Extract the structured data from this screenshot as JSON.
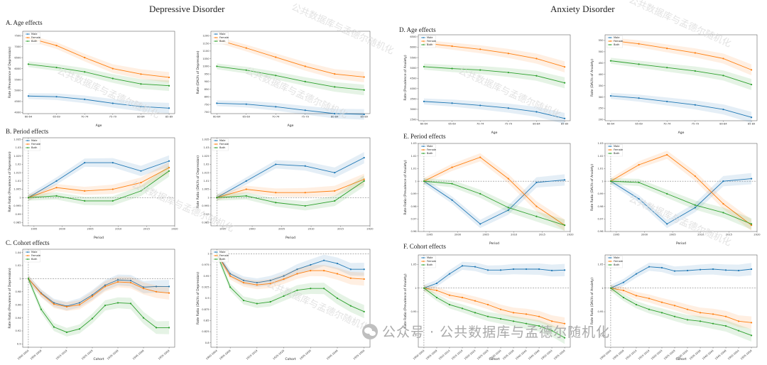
{
  "titles": {
    "left": "Depressive Disorder",
    "right": "Anxiety Disorder"
  },
  "sections": {
    "A": "A. Age effects",
    "B": "B. Period effects",
    "C": "C. Cohort effects",
    "D": "D. Age effects",
    "E": "E. Period effects",
    "F": "F. Cohort effects"
  },
  "watermark": "公共数据库与孟德尔随机化",
  "footer": {
    "text": "公众号 · 公共数据库与孟德尔随机化",
    "icon": "wechat-icon"
  },
  "colors": {
    "Male": "#1f77b4",
    "Female": "#ff7f0e",
    "Both": "#2ca02c"
  },
  "chart_data": [
    {
      "id": "dep-age-prev",
      "type": "line",
      "xlabel": "Age",
      "ylabel": "Rate (Prevalence of Depression)",
      "categories": [
        "60-64",
        "65-69",
        "70-74",
        "75-79",
        "80-84",
        "85-89"
      ],
      "yticks": [
        4000,
        4500,
        5000,
        5500,
        6000,
        6500,
        7000,
        7500
      ],
      "ylim": [
        3950,
        7700
      ],
      "legend": [
        "Male",
        "Female",
        "Both"
      ],
      "legend_position": "top-left",
      "series": [
        {
          "name": "Male",
          "values": [
            4750,
            4720,
            4600,
            4420,
            4270,
            4200
          ]
        },
        {
          "name": "Female",
          "values": [
            7400,
            7050,
            6500,
            6000,
            5750,
            5600
          ]
        },
        {
          "name": "Both",
          "values": [
            6200,
            6050,
            5850,
            5550,
            5300,
            5220
          ]
        }
      ]
    },
    {
      "id": "dep-age-daly",
      "type": "line",
      "xlabel": "Age",
      "ylabel": "Rate (DALYs of Depression)",
      "categories": [
        "60-64",
        "65-69",
        "70-74",
        "75-79",
        "80-84",
        "85-89"
      ],
      "yticks": [
        700,
        750,
        800,
        850,
        900,
        950,
        1000,
        1050,
        1100,
        1150,
        1200
      ],
      "ylim": [
        690,
        1230
      ],
      "legend": [
        "Male",
        "Female",
        "Both"
      ],
      "legend_position": "top-left",
      "series": [
        {
          "name": "Male",
          "values": [
            758,
            752,
            735,
            712,
            690,
            685
          ]
        },
        {
          "name": "Female",
          "values": [
            1175,
            1120,
            1060,
            1000,
            950,
            930
          ]
        },
        {
          "name": "Both",
          "values": [
            1000,
            975,
            940,
            900,
            865,
            845
          ]
        }
      ]
    },
    {
      "id": "dep-period-prev",
      "type": "line",
      "xlabel": "Period",
      "ylabel": "Rate Ratio (Prevalence of Depression)",
      "x": [
        1994,
        1999,
        2004,
        2009,
        2014,
        2019
      ],
      "xticks": [
        1995,
        2000,
        2005,
        2010,
        2015,
        2020
      ],
      "xlim": [
        1993,
        2020
      ],
      "yticks": [
        0.985,
        0.99,
        0.995,
        1.0,
        1.005,
        1.01,
        1.015,
        1.02,
        1.025,
        1.03,
        1.035
      ],
      "ylim": [
        0.983,
        1.036
      ],
      "ref_line": {
        "y": 1.0,
        "x": 1994
      },
      "legend": [
        "Male",
        "Female",
        "Both"
      ],
      "legend_position": "top-left",
      "series": [
        {
          "name": "Male",
          "values": [
            1.0,
            1.01,
            1.021,
            1.021,
            1.016,
            1.022
          ]
        },
        {
          "name": "Female",
          "values": [
            1.0,
            1.006,
            1.004,
            1.005,
            1.009,
            1.018
          ]
        },
        {
          "name": "Both",
          "values": [
            1.0,
            1.001,
            0.998,
            0.998,
            1.004,
            1.016
          ]
        }
      ]
    },
    {
      "id": "dep-period-daly",
      "type": "line",
      "xlabel": "Period",
      "ylabel": "Rate Ratio (DALYs of Depression)",
      "x": [
        1994,
        1999,
        2004,
        2009,
        2014,
        2019
      ],
      "xticks": [
        1995,
        2000,
        2005,
        2010,
        2015,
        2020
      ],
      "xlim": [
        1993,
        2020
      ],
      "yticks": [
        0.985,
        0.99,
        0.995,
        1.0,
        1.005,
        1.01,
        1.015,
        1.02,
        1.025,
        1.03,
        1.035
      ],
      "ylim": [
        0.983,
        1.036
      ],
      "ref_line": {
        "y": 1.0,
        "x": 1994
      },
      "legend": [
        "Male",
        "Female",
        "Both"
      ],
      "legend_position": "top-left",
      "series": [
        {
          "name": "Male",
          "values": [
            1.0,
            1.01,
            1.02,
            1.019,
            1.015,
            1.024
          ]
        },
        {
          "name": "Female",
          "values": [
            1.0,
            1.005,
            1.003,
            1.003,
            1.004,
            1.011
          ]
        },
        {
          "name": "Both",
          "values": [
            1.0,
            1.001,
            0.997,
            0.995,
            0.998,
            1.01
          ]
        }
      ]
    },
    {
      "id": "dep-cohort-prev",
      "type": "line",
      "xlabel": "Cohort",
      "ylabel": "Rate Ratio (Prevalence of Depression)",
      "categories": [
        "1900-1904",
        "1905-1909",
        "1910-1914",
        "1915-1919",
        "1920-1924",
        "1925-1929",
        "1930-1934",
        "1935-1939",
        "1940-1944",
        "1945-1949",
        "1950-1954",
        "1955-1959"
      ],
      "xticks": [
        "1900-1904",
        "1905-1909",
        "1915-1919",
        "1925-1929",
        "1935-1939",
        "1945-1949",
        "1955-1959"
      ],
      "x": [
        1900,
        1905,
        1910,
        1915,
        1920,
        1925,
        1930,
        1935,
        1940,
        1945,
        1950,
        1955
      ],
      "yticks": [
        0.9,
        0.92,
        0.94,
        0.96,
        0.98,
        1.0,
        1.02,
        1.04
      ],
      "ylim": [
        0.895,
        1.045
      ],
      "ref_line": {
        "y": 1.0,
        "x": 1900
      },
      "legend": [
        "Male",
        "Female",
        "Both"
      ],
      "legend_position": "top-left",
      "series": [
        {
          "name": "Male",
          "values": [
            1.0,
            0.978,
            0.963,
            0.958,
            0.963,
            0.975,
            0.99,
            0.998,
            0.997,
            0.987,
            0.988,
            0.988
          ]
        },
        {
          "name": "Female",
          "values": [
            1.0,
            0.977,
            0.961,
            0.957,
            0.96,
            0.973,
            0.988,
            0.995,
            0.994,
            0.985,
            0.98,
            0.978
          ]
        },
        {
          "name": "Both",
          "values": [
            1.0,
            0.953,
            0.926,
            0.918,
            0.923,
            0.939,
            0.959,
            0.963,
            0.962,
            0.94,
            0.925,
            0.925
          ]
        }
      ]
    },
    {
      "id": "dep-cohort-daly",
      "type": "line",
      "xlabel": "Cohort",
      "ylabel": "Rate Ratio (DALYs of Depression)",
      "categories": [
        "1900-1904",
        "1905-1909",
        "1910-1914",
        "1915-1919",
        "1920-1924",
        "1925-1929",
        "1930-1934",
        "1935-1939",
        "1940-1944",
        "1945-1949",
        "1950-1954",
        "1955-1959"
      ],
      "xticks": [
        "1900-1904",
        "1905-1909",
        "1915-1919",
        "1925-1929",
        "1935-1939",
        "1945-1949",
        "1955-1959"
      ],
      "x": [
        1900,
        1905,
        1910,
        1915,
        1920,
        1925,
        1930,
        1935,
        1940,
        1945,
        1950,
        1955
      ],
      "yticks": [
        0.8,
        0.825,
        0.85,
        0.875,
        0.9,
        0.925,
        0.95,
        0.975,
        1.0
      ],
      "ylim": [
        0.79,
        1.01
      ],
      "ref_line": {
        "y": 1.0,
        "x": 1900
      },
      "legend": [
        "Male",
        "Female",
        "Both"
      ],
      "legend_position": "top-left",
      "series": [
        {
          "name": "Male",
          "values": [
            1.0,
            0.955,
            0.94,
            0.935,
            0.94,
            0.95,
            0.965,
            0.975,
            0.985,
            0.978,
            0.965,
            0.965
          ]
        },
        {
          "name": "Female",
          "values": [
            1.0,
            0.95,
            0.935,
            0.93,
            0.933,
            0.943,
            0.955,
            0.962,
            0.962,
            0.955,
            0.945,
            0.943
          ]
        },
        {
          "name": "Both",
          "values": [
            1.0,
            0.925,
            0.895,
            0.888,
            0.892,
            0.905,
            0.918,
            0.922,
            0.922,
            0.9,
            0.883,
            0.87
          ]
        }
      ]
    },
    {
      "id": "anx-age-prev",
      "type": "line",
      "xlabel": "Age",
      "ylabel": "Rate (Prevalence of Anxiety)",
      "categories": [
        "60-64",
        "65-69",
        "70-74",
        "75-79",
        "80-84",
        "85-89"
      ],
      "yticks": [
        2500,
        3000,
        3500,
        4000,
        4500,
        5000,
        5500,
        6000,
        6500
      ],
      "ylim": [
        2450,
        6600
      ],
      "legend": [
        "Male",
        "Female",
        "Both"
      ],
      "legend_position": "top-left",
      "series": [
        {
          "name": "Male",
          "values": [
            3380,
            3300,
            3190,
            3060,
            2880,
            2560
          ]
        },
        {
          "name": "Female",
          "values": [
            6200,
            6050,
            5900,
            5700,
            5450,
            5050
          ]
        },
        {
          "name": "Both",
          "values": [
            5060,
            4970,
            4900,
            4780,
            4620,
            4280
          ]
        }
      ]
    },
    {
      "id": "anx-age-daly",
      "type": "line",
      "xlabel": "Age",
      "ylabel": "Rate (DALYs of Anxiety)",
      "categories": [
        "60-64",
        "65-69",
        "70-74",
        "75-79",
        "80-84",
        "85-89"
      ],
      "yticks": [
        200,
        250,
        300,
        350,
        400,
        450,
        500,
        550
      ],
      "ylim": [
        195,
        575
      ],
      "legend": [
        "Male",
        "Female",
        "Both"
      ],
      "legend_position": "top-left",
      "series": [
        {
          "name": "Male",
          "values": [
            305,
            295,
            280,
            265,
            245,
            210
          ]
        },
        {
          "name": "Female",
          "values": [
            550,
            535,
            515,
            495,
            470,
            420
          ]
        },
        {
          "name": "Both",
          "values": [
            460,
            445,
            430,
            415,
            395,
            355
          ]
        }
      ]
    },
    {
      "id": "anx-period-prev",
      "type": "line",
      "xlabel": "Period",
      "ylabel": "Rate Ratio (Prevalence of Anxiety)",
      "x": [
        1994,
        1999,
        2004,
        2009,
        2014,
        2019
      ],
      "xticks": [
        1995,
        2000,
        2005,
        2010,
        2015,
        2020
      ],
      "xlim": [
        1993,
        2020
      ],
      "yticks": [
        0.96,
        0.97,
        0.98,
        0.99,
        1.0,
        1.01,
        1.02,
        1.03
      ],
      "ylim": [
        0.96,
        1.03
      ],
      "ref_line": {
        "y": 1.0,
        "x": 1994
      },
      "legend": [
        "Male",
        "Female",
        "Both"
      ],
      "legend_position": "top-left",
      "series": [
        {
          "name": "Male",
          "values": [
            1.0,
            0.985,
            0.966,
            0.977,
            0.999,
            1.001
          ]
        },
        {
          "name": "Female",
          "values": [
            1.0,
            1.011,
            1.019,
            1.002,
            0.98,
            0.965
          ]
        },
        {
          "name": "Both",
          "values": [
            1.0,
            0.998,
            0.99,
            0.979,
            0.972,
            0.965
          ]
        }
      ]
    },
    {
      "id": "anx-period-daly",
      "type": "line",
      "xlabel": "Period",
      "ylabel": "Rate Ratio (DALYs of Anxiety)",
      "x": [
        1994,
        1999,
        2004,
        2009,
        2014,
        2019
      ],
      "xticks": [
        1995,
        2000,
        2005,
        2010,
        2015,
        2020
      ],
      "xlim": [
        1993,
        2020
      ],
      "yticks": [
        0.96,
        0.97,
        0.98,
        0.99,
        1.0,
        1.01,
        1.02,
        1.03
      ],
      "ylim": [
        0.96,
        1.03
      ],
      "ref_line": {
        "y": 1.0,
        "x": 1994
      },
      "legend": [
        "Male",
        "Female",
        "Both"
      ],
      "legend_position": "top-left",
      "series": [
        {
          "name": "Male",
          "values": [
            1.0,
            0.986,
            0.966,
            0.979,
            1.0,
            1.002
          ]
        },
        {
          "name": "Female",
          "values": [
            1.0,
            1.013,
            1.021,
            1.004,
            0.982,
            0.965
          ]
        },
        {
          "name": "Both",
          "values": [
            1.0,
            0.999,
            0.99,
            0.981,
            0.975,
            0.966
          ]
        }
      ]
    },
    {
      "id": "anx-cohort-prev",
      "type": "line",
      "xlabel": "Cohort",
      "ylabel": "Rate Ratio (Prevalence of Anxiety)",
      "categories": [
        "1900-1904",
        "1905-1909",
        "1910-1914",
        "1915-1919",
        "1920-1924",
        "1925-1929",
        "1930-1934",
        "1935-1939",
        "1940-1944",
        "1945-1949",
        "1950-1954",
        "1955-1959"
      ],
      "xticks": [
        "1900-1904",
        "1905-1909",
        "1910-1914",
        "1915-1919",
        "1920-1924",
        "1925-1929",
        "1930-1934",
        "1935-1939",
        "1940-1944",
        "1945-1949",
        "1950-1954",
        "1955-1959"
      ],
      "x": [
        1900,
        1905,
        1910,
        1915,
        1920,
        1925,
        1930,
        1935,
        1940,
        1945,
        1950,
        1955
      ],
      "yticks": [
        0.9,
        0.95,
        1.0,
        1.05
      ],
      "ylim": [
        0.875,
        1.07
      ],
      "ref_line": {
        "y": 1.0,
        "x": 1900
      },
      "legend": [
        "Male",
        "Female",
        "Both"
      ],
      "legend_position": "top-left",
      "series": [
        {
          "name": "Male",
          "values": [
            1.0,
            1.01,
            1.03,
            1.047,
            1.045,
            1.038,
            1.038,
            1.04,
            1.04,
            1.04,
            1.037,
            1.038
          ]
        },
        {
          "name": "Female",
          "values": [
            1.0,
            0.995,
            0.985,
            0.98,
            0.973,
            0.965,
            0.955,
            0.948,
            0.945,
            0.94,
            0.93,
            0.925
          ]
        },
        {
          "name": "Both",
          "values": [
            1.0,
            0.98,
            0.965,
            0.957,
            0.948,
            0.94,
            0.935,
            0.93,
            0.925,
            0.92,
            0.91,
            0.895
          ]
        }
      ]
    },
    {
      "id": "anx-cohort-daly",
      "type": "line",
      "xlabel": "Cohort",
      "ylabel": "Rate Ratio (DALYs of Anxiety)",
      "categories": [
        "1900-1904",
        "1905-1909",
        "1910-1914",
        "1915-1919",
        "1920-1924",
        "1925-1929",
        "1930-1934",
        "1935-1939",
        "1940-1944",
        "1945-1949",
        "1950-1954",
        "1955-1959"
      ],
      "xticks": [
        "1900-1904",
        "1905-1909",
        "1910-1914",
        "1915-1919",
        "1920-1924",
        "1925-1929",
        "1930-1934",
        "1935-1939",
        "1940-1944",
        "1945-1949",
        "1950-1954",
        "1955-1959"
      ],
      "x": [
        1900,
        1905,
        1910,
        1915,
        1920,
        1925,
        1930,
        1935,
        1940,
        1945,
        1950,
        1955
      ],
      "yticks": [
        0.9,
        0.95,
        1.0,
        1.05
      ],
      "ylim": [
        0.875,
        1.07
      ],
      "ref_line": {
        "y": 1.0,
        "x": 1900
      },
      "legend": [
        "Male",
        "Female",
        "Both"
      ],
      "legend_position": "top-left",
      "series": [
        {
          "name": "Male",
          "values": [
            1.0,
            1.012,
            1.03,
            1.045,
            1.043,
            1.036,
            1.037,
            1.039,
            1.04,
            1.038,
            1.037,
            1.04
          ]
        },
        {
          "name": "Female",
          "values": [
            1.0,
            0.995,
            0.984,
            0.978,
            0.97,
            0.963,
            0.955,
            0.948,
            0.945,
            0.94,
            0.93,
            0.927
          ]
        },
        {
          "name": "Both",
          "values": [
            1.0,
            0.98,
            0.965,
            0.955,
            0.948,
            0.94,
            0.933,
            0.93,
            0.925,
            0.92,
            0.91,
            0.9
          ]
        }
      ]
    }
  ]
}
